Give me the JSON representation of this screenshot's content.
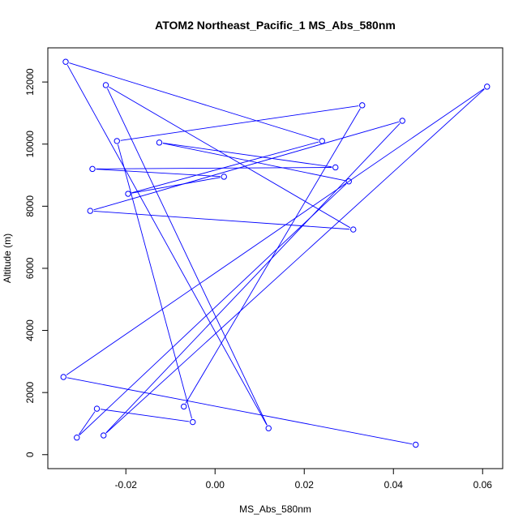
{
  "chart_data": {
    "type": "line",
    "title": "ATOM2 Northeast_Pacific_1 MS_Abs_580nm",
    "xlabel": "MS_Abs_580nm",
    "ylabel": "Altitude (m)",
    "xlim": [
      -0.0375,
      0.0645
    ],
    "ylim": [
      -450,
      13100
    ],
    "x_ticks": [
      -0.02,
      0.0,
      0.02,
      0.04,
      0.06
    ],
    "x_tick_labels": [
      "-0.02",
      "0.00",
      "0.02",
      "0.04",
      "0.06"
    ],
    "y_ticks": [
      0,
      2000,
      4000,
      6000,
      8000,
      10000,
      12000
    ],
    "y_tick_labels": [
      "0",
      "2000",
      "4000",
      "6000",
      "8000",
      "10000",
      "12000"
    ],
    "grid": false,
    "legend": "none",
    "colors": {
      "series": "#0000ff",
      "axes": "#000000"
    },
    "series": [
      {
        "marker": "open-circle",
        "x": [
          0.045,
          -0.034,
          0.061,
          -0.025,
          0.042,
          -0.028,
          0.031,
          -0.0245,
          0.012,
          -0.0335,
          0.024,
          -0.0195,
          0.002,
          -0.0275,
          0.027,
          -0.0125,
          0.03,
          -0.031,
          -0.0265,
          -0.005,
          -0.022,
          0.033,
          -0.007
        ],
        "y": [
          320,
          2500,
          11850,
          620,
          10750,
          7850,
          7250,
          11900,
          850,
          12650,
          10100,
          8400,
          8950,
          9200,
          9250,
          10050,
          8800,
          550,
          1480,
          1050,
          10100,
          11250,
          1550
        ]
      }
    ]
  }
}
